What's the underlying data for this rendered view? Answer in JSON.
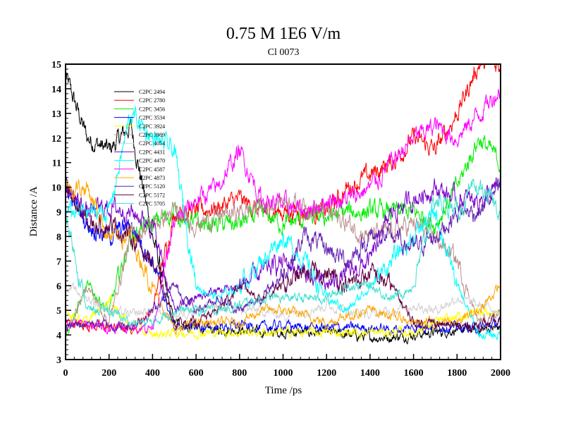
{
  "chart_data": {
    "type": "line",
    "title": "0.75 M 1E6 V/m",
    "subtitle": "Cl 0073",
    "xlabel": "Time /ps",
    "ylabel": "Distance /A",
    "xlim": [
      0,
      2000
    ],
    "ylim": [
      3,
      15
    ],
    "xticks": [
      0,
      200,
      400,
      600,
      800,
      1000,
      1200,
      1400,
      1600,
      1800,
      2000
    ],
    "yticks": [
      3,
      4,
      5,
      6,
      7,
      8,
      9,
      10,
      11,
      12,
      13,
      14,
      15
    ],
    "grid": false,
    "legend_position": "top-left",
    "x": [
      0,
      100,
      200,
      300,
      400,
      500,
      600,
      700,
      800,
      900,
      1000,
      1100,
      1200,
      1300,
      1400,
      1500,
      1600,
      1700,
      1800,
      1900,
      2000
    ],
    "series": [
      {
        "name": "C2PC 2494",
        "color": "#000000",
        "values": [
          14.5,
          12.0,
          11.5,
          12.5,
          8.0,
          4.5,
          4.3,
          4.2,
          4.2,
          4.1,
          4.1,
          4.1,
          4.1,
          4.0,
          3.9,
          3.9,
          4.0,
          4.1,
          4.2,
          4.2,
          4.3
        ]
      },
      {
        "name": "C2PC 2780",
        "color": "#ff0000",
        "values": [
          4.5,
          4.4,
          4.3,
          4.3,
          5.0,
          9.0,
          9.0,
          9.2,
          9.5,
          9.0,
          9.0,
          9.0,
          9.0,
          10.0,
          10.5,
          11.0,
          12.0,
          11.5,
          13.0,
          15.0,
          15.0
        ]
      },
      {
        "name": "C2PC 3456",
        "color": "#00ee00",
        "values": [
          4.0,
          6.0,
          5.0,
          8.0,
          8.5,
          9.0,
          8.5,
          8.5,
          8.5,
          9.0,
          8.5,
          8.7,
          8.8,
          9.0,
          9.0,
          9.0,
          9.0,
          8.5,
          10.0,
          12.0,
          11.0
        ]
      },
      {
        "name": "C2PC 3534",
        "color": "#0000ff",
        "values": [
          10.0,
          8.5,
          8.0,
          8.5,
          7.0,
          4.3,
          4.3,
          4.3,
          4.4,
          4.3,
          4.4,
          4.3,
          4.3,
          4.3,
          4.3,
          4.2,
          4.3,
          4.4,
          4.3,
          4.3,
          4.5
        ]
      },
      {
        "name": "C2PC 3924",
        "color": "#ffff00",
        "values": [
          5.0,
          4.5,
          5.5,
          4.3,
          4.0,
          4.1,
          4.1,
          4.1,
          4.1,
          4.1,
          4.1,
          4.1,
          4.1,
          4.1,
          4.1,
          4.1,
          4.1,
          4.5,
          4.7,
          5.0,
          4.8
        ]
      },
      {
        "name": "C2PC 3989",
        "color": "#bc8f8f",
        "values": [
          4.0,
          6.0,
          4.5,
          8.0,
          8.5,
          9.0,
          8.5,
          8.8,
          9.0,
          9.2,
          9.5,
          9.3,
          9.0,
          8.5,
          8.0,
          8.2,
          8.5,
          8.0,
          7.0,
          4.5,
          5.0
        ]
      },
      {
        "name": "C2PC 4054",
        "color": "#d3d3d3",
        "values": [
          6.0,
          5.5,
          5.0,
          4.8,
          5.0,
          4.8,
          5.0,
          5.2,
          5.0,
          5.0,
          4.8,
          5.0,
          5.2,
          5.0,
          4.8,
          5.0,
          5.2,
          5.0,
          5.5,
          5.2,
          5.0
        ]
      },
      {
        "name": "C2PC 4431",
        "color": "#7a00cc",
        "values": [
          10.0,
          9.0,
          9.2,
          9.0,
          8.5,
          5.0,
          5.5,
          5.8,
          6.0,
          6.5,
          7.0,
          6.5,
          6.0,
          6.5,
          7.0,
          9.0,
          9.5,
          10.0,
          9.5,
          9.5,
          10.0
        ]
      },
      {
        "name": "C2PC 4470",
        "color": "#00ffff",
        "values": [
          9.0,
          9.0,
          9.0,
          13.0,
          12.0,
          11.5,
          6.0,
          5.5,
          6.0,
          7.0,
          8.0,
          7.0,
          5.5,
          5.0,
          6.0,
          7.0,
          8.0,
          9.0,
          6.0,
          4.0,
          4.0
        ]
      },
      {
        "name": "C2PC 4587",
        "color": "#ff00ff",
        "values": [
          4.5,
          4.4,
          4.3,
          4.3,
          4.3,
          8.5,
          9.5,
          10.0,
          11.5,
          9.5,
          9.3,
          9.0,
          9.5,
          9.5,
          10.0,
          11.0,
          12.0,
          12.5,
          12.0,
          13.0,
          14.0
        ]
      },
      {
        "name": "C2PC 4873",
        "color": "#ffa500",
        "values": [
          10.0,
          10.0,
          8.0,
          8.0,
          6.0,
          4.2,
          4.5,
          4.5,
          4.5,
          5.0,
          5.0,
          4.8,
          4.5,
          4.8,
          5.0,
          4.8,
          4.5,
          4.5,
          4.5,
          5.0,
          6.0
        ]
      },
      {
        "name": "C2PC 5120",
        "color": "#6020b0",
        "values": [
          4.3,
          4.5,
          4.4,
          4.3,
          5.0,
          6.0,
          5.0,
          5.5,
          5.0,
          5.5,
          6.5,
          8.0,
          7.5,
          7.0,
          8.0,
          8.0,
          7.5,
          8.0,
          9.0,
          9.0,
          10.0
        ]
      },
      {
        "name": "C2PC 5172",
        "color": "#600040",
        "values": [
          10.0,
          8.5,
          8.5,
          8.0,
          7.0,
          4.5,
          4.5,
          5.0,
          6.0,
          5.5,
          6.0,
          6.5,
          6.5,
          6.0,
          6.5,
          6.0,
          4.5,
          4.5,
          4.3,
          4.4,
          4.5
        ]
      },
      {
        "name": "C2PC 5705",
        "color": "#40e0d0",
        "values": [
          9.0,
          5.0,
          5.0,
          4.5,
          4.5,
          5.0,
          5.0,
          5.0,
          5.2,
          5.5,
          5.5,
          5.5,
          5.5,
          6.0,
          6.0,
          5.5,
          6.0,
          9.5,
          9.0,
          10.0,
          9.0
        ]
      }
    ]
  }
}
